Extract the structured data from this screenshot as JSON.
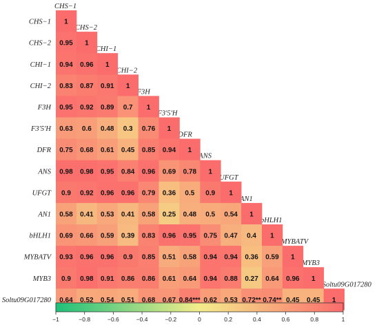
{
  "chart_data": {
    "type": "heatmap",
    "layout": "lower-triangular correlation matrix",
    "genes": [
      "CHS-1",
      "CHS-2",
      "CHI-1",
      "CHI-2",
      "F3H",
      "F3'5'H",
      "DFR",
      "ANS",
      "UFGT",
      "AN1",
      "bHLH1",
      "MYBATV",
      "MYB3",
      "Soltu09G017280"
    ],
    "row_labels": [
      "CHS−1",
      "CHS−2",
      "CHI−1",
      "CHI−2",
      "F3H",
      "F3'5'H",
      "DFR",
      "ANS",
      "UFGT",
      "AN1",
      "bHLH1",
      "MYBATV",
      "MYB3",
      "Soltu09G017280"
    ],
    "column_labels": [
      "CHS−1",
      "CHS−2",
      "CHI−1",
      "CHI−2",
      "F3H",
      "F3'5'H",
      "DFR",
      "ANS",
      "UFGT",
      "AN1",
      "bHLH1",
      "MYBATV",
      "MYB3",
      "Soltu09G017280"
    ],
    "values": [
      [
        1
      ],
      [
        0.95,
        1
      ],
      [
        0.94,
        0.96,
        1
      ],
      [
        0.83,
        0.87,
        0.91,
        1
      ],
      [
        0.95,
        0.92,
        0.89,
        0.7,
        1
      ],
      [
        0.63,
        0.6,
        0.48,
        0.3,
        0.76,
        1
      ],
      [
        0.75,
        0.68,
        0.61,
        0.45,
        0.85,
        0.94,
        1
      ],
      [
        0.98,
        0.98,
        0.95,
        0.84,
        0.96,
        0.69,
        0.78,
        1
      ],
      [
        0.9,
        0.92,
        0.96,
        0.96,
        0.79,
        0.36,
        0.5,
        0.9,
        1
      ],
      [
        0.58,
        0.41,
        0.53,
        0.41,
        0.58,
        0.25,
        0.48,
        0.5,
        0.54,
        1
      ],
      [
        0.69,
        0.66,
        0.59,
        0.39,
        0.83,
        0.96,
        0.95,
        0.75,
        0.47,
        0.4,
        1
      ],
      [
        0.93,
        0.96,
        0.96,
        0.9,
        0.85,
        0.51,
        0.58,
        0.94,
        0.94,
        0.36,
        0.59,
        1
      ],
      [
        0.9,
        0.98,
        0.91,
        0.86,
        0.86,
        0.61,
        0.64,
        0.94,
        0.88,
        0.27,
        0.64,
        0.96,
        1
      ],
      [
        0.64,
        0.52,
        0.54,
        0.51,
        0.68,
        0.67,
        0.84,
        0.62,
        0.53,
        0.72,
        0.74,
        0.45,
        0.45,
        1
      ]
    ],
    "cell_text": [
      [
        "1"
      ],
      [
        "0.95",
        "1"
      ],
      [
        "0.94",
        "0.96",
        "1"
      ],
      [
        "0.83",
        "0.87",
        "0.91",
        "1"
      ],
      [
        "0.95",
        "0.92",
        "0.89",
        "0.7",
        "1"
      ],
      [
        "0.63",
        "0.6",
        "0.48",
        "0.3",
        "0.76",
        "1"
      ],
      [
        "0.75",
        "0.68",
        "0.61",
        "0.45",
        "0.85",
        "0.94",
        "1"
      ],
      [
        "0.98",
        "0.98",
        "0.95",
        "0.84",
        "0.96",
        "0.69",
        "0.78",
        "1"
      ],
      [
        "0.9",
        "0.92",
        "0.96",
        "0.96",
        "0.79",
        "0.36",
        "0.5",
        "0.9",
        "1"
      ],
      [
        "0.58",
        "0.41",
        "0.53",
        "0.41",
        "0.58",
        "0.25",
        "0.48",
        "0.5",
        "0.54",
        "1"
      ],
      [
        "0.69",
        "0.66",
        "0.59",
        "0.39",
        "0.83",
        "0.96",
        "0.95",
        "0.75",
        "0.47",
        "0.4",
        "1"
      ],
      [
        "0.93",
        "0.96",
        "0.96",
        "0.9",
        "0.85",
        "0.51",
        "0.58",
        "0.94",
        "0.94",
        "0.36",
        "0.59",
        "1"
      ],
      [
        "0.9",
        "0.98",
        "0.91",
        "0.86",
        "0.86",
        "0.61",
        "0.64",
        "0.94",
        "0.88",
        "0.27",
        "0.64",
        "0.96",
        "1"
      ],
      [
        "0.64",
        "0.52",
        "0.54",
        "0.51",
        "0.68",
        "0.67",
        "0.84***",
        "0.62",
        "0.53",
        "0.72**",
        "0.74**",
        "0.45",
        "0.45",
        "1"
      ]
    ],
    "colorbar": {
      "range": [
        -1,
        1
      ],
      "ticks": [
        -1,
        -0.8,
        -0.6,
        -0.4,
        -0.2,
        0,
        0.2,
        0.4,
        0.6,
        0.8,
        1
      ],
      "tick_labels": [
        "−1",
        "−0.8",
        "−0.6",
        "−0.4",
        "−0.2",
        "0",
        "0.2",
        "0.4",
        "0.6",
        "0.8",
        "1"
      ],
      "colors": [
        "#1fc07a",
        "#f4ec8c",
        "#fb6c6c"
      ],
      "orientation": "horizontal",
      "placement": "bottom"
    },
    "title": "",
    "xlabel": "",
    "ylabel": ""
  }
}
